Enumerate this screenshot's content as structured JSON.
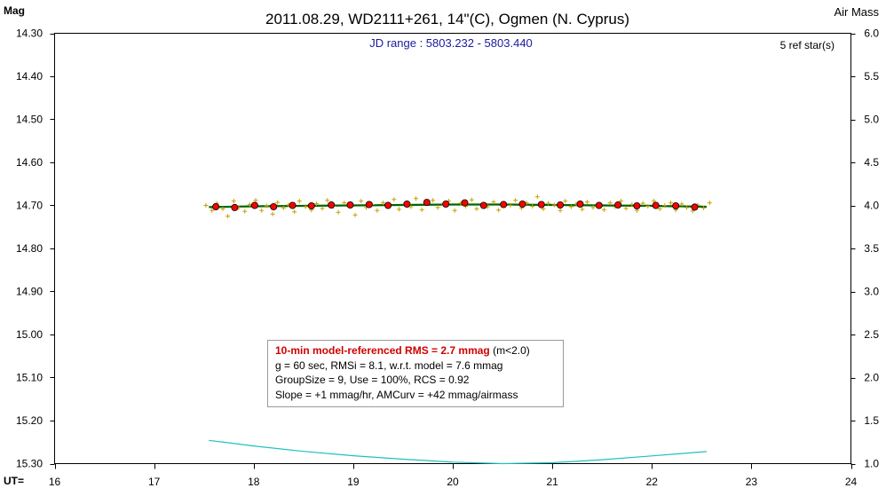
{
  "chart_data": {
    "type": "scatter",
    "title": "2011.08.29, WD2111+261, 14\"(C), Ogmen (N. Cyprus)",
    "subtitle": "JD range : 5803.232 - 5803.440",
    "ref_stars": "5 ref star(s)",
    "ylabel_left": "Mag",
    "ylabel_right": "Air Mass",
    "xlabel": "UT=",
    "xlim": [
      16,
      24
    ],
    "ylim": [
      15.3,
      14.3
    ],
    "y2lim": [
      1.0,
      6.0
    ],
    "y_inverted": true,
    "x_ticks": [
      "16",
      "17",
      "18",
      "19",
      "20",
      "21",
      "22",
      "23",
      "24"
    ],
    "y_ticks": [
      "14.30",
      "14.40",
      "14.50",
      "14.60",
      "14.70",
      "14.80",
      "14.90",
      "15.00",
      "15.10",
      "15.20",
      "15.30"
    ],
    "y2_ticks": [
      "6.0",
      "5.5",
      "5.0",
      "4.5",
      "4.0",
      "3.5",
      "3.0",
      "2.5",
      "2.0",
      "1.5",
      "1.0"
    ],
    "grid": false,
    "colors": {
      "raw": "#c8a000",
      "binned": "#ff0000",
      "model": "#006400",
      "airmass": "#20c0c0"
    },
    "series": [
      {
        "style": "raw-crosses",
        "x": [
          17.52,
          17.58,
          17.63,
          17.69,
          17.74,
          17.8,
          17.85,
          17.91,
          17.96,
          18.02,
          18.08,
          18.13,
          18.19,
          18.24,
          18.3,
          18.35,
          18.41,
          18.46,
          18.52,
          18.58,
          18.63,
          18.69,
          18.74,
          18.8,
          18.85,
          18.91,
          18.96,
          19.02,
          19.08,
          19.13,
          19.19,
          19.24,
          19.3,
          19.35,
          19.41,
          19.46,
          19.52,
          19.58,
          19.63,
          19.69,
          19.74,
          19.8,
          19.85,
          19.91,
          19.96,
          20.02,
          20.08,
          20.13,
          20.19,
          20.24,
          20.3,
          20.35,
          20.41,
          20.46,
          20.52,
          20.58,
          20.63,
          20.69,
          20.74,
          20.8,
          20.85,
          20.91,
          20.96,
          21.02,
          21.08,
          21.13,
          21.19,
          21.24,
          21.3,
          21.35,
          21.41,
          21.46,
          21.52,
          21.58,
          21.63,
          21.69,
          21.74,
          21.8,
          21.85,
          21.91,
          21.96,
          22.02,
          22.08,
          22.13,
          22.19,
          22.24,
          22.3,
          22.35,
          22.41,
          22.46,
          22.52,
          22.58
        ],
        "y": [
          14.7,
          14.712,
          14.695,
          14.708,
          14.725,
          14.69,
          14.705,
          14.714,
          14.698,
          14.688,
          14.712,
          14.701,
          14.72,
          14.693,
          14.706,
          14.699,
          14.715,
          14.69,
          14.703,
          14.711,
          14.696,
          14.707,
          14.688,
          14.702,
          14.716,
          14.694,
          14.7,
          14.722,
          14.69,
          14.705,
          14.698,
          14.712,
          14.694,
          14.701,
          14.686,
          14.709,
          14.697,
          14.703,
          14.684,
          14.71,
          14.692,
          14.688,
          14.705,
          14.699,
          14.69,
          14.712,
          14.695,
          14.702,
          14.687,
          14.708,
          14.699,
          14.703,
          14.692,
          14.711,
          14.696,
          14.7,
          14.688,
          14.706,
          14.694,
          14.702,
          14.68,
          14.708,
          14.695,
          14.699,
          14.712,
          14.69,
          14.703,
          14.697,
          14.709,
          14.692,
          14.705,
          14.699,
          14.71,
          14.694,
          14.703,
          14.69,
          14.707,
          14.698,
          14.712,
          14.695,
          14.702,
          14.69,
          14.708,
          14.7,
          14.694,
          14.711,
          14.697,
          14.705,
          14.713,
          14.699,
          14.706,
          14.694
        ]
      },
      {
        "style": "binned-dots",
        "x": [
          17.62,
          17.81,
          18.01,
          18.2,
          18.39,
          18.58,
          18.78,
          18.97,
          19.16,
          19.35,
          19.54,
          19.74,
          19.93,
          20.12,
          20.31,
          20.51,
          20.7,
          20.89,
          21.08,
          21.28,
          21.47,
          21.66,
          21.85,
          22.04,
          22.24,
          22.43
        ],
        "y": [
          14.703,
          14.705,
          14.7,
          14.703,
          14.7,
          14.701,
          14.699,
          14.699,
          14.698,
          14.7,
          14.697,
          14.693,
          14.697,
          14.694,
          14.7,
          14.698,
          14.697,
          14.698,
          14.699,
          14.697,
          14.7,
          14.699,
          14.701,
          14.7,
          14.701,
          14.704
        ]
      },
      {
        "style": "model-line",
        "x": [
          17.55,
          18.0,
          18.5,
          19.0,
          19.5,
          20.0,
          20.5,
          21.0,
          21.5,
          22.0,
          22.55
        ],
        "y": [
          14.704,
          14.702,
          14.701,
          14.7,
          14.699,
          14.698,
          14.698,
          14.699,
          14.7,
          14.701,
          14.703
        ]
      },
      {
        "style": "airmass-curve",
        "axis": "right",
        "x": [
          17.55,
          18.0,
          18.5,
          19.0,
          19.5,
          20.0,
          20.5,
          21.0,
          21.5,
          22.0,
          22.55
        ],
        "y": [
          1.27,
          1.205,
          1.142,
          1.092,
          1.052,
          1.018,
          1.0,
          1.01,
          1.045,
          1.09,
          1.14
        ]
      }
    ]
  },
  "stats_box": {
    "line1_red": "10-min model-referenced RMS = 2.7 mmag",
    "line1_rest": " (m<2.0)",
    "line2": "g = 60 sec, RMSi = 8.1, w.r.t. model = 7.6 mmag",
    "line3": "GroupSize = 9, Use = 100%, RCS = 0.92",
    "line4": "Slope = +1 mmag/hr, AMCurv = +42 mmag/airmass"
  }
}
